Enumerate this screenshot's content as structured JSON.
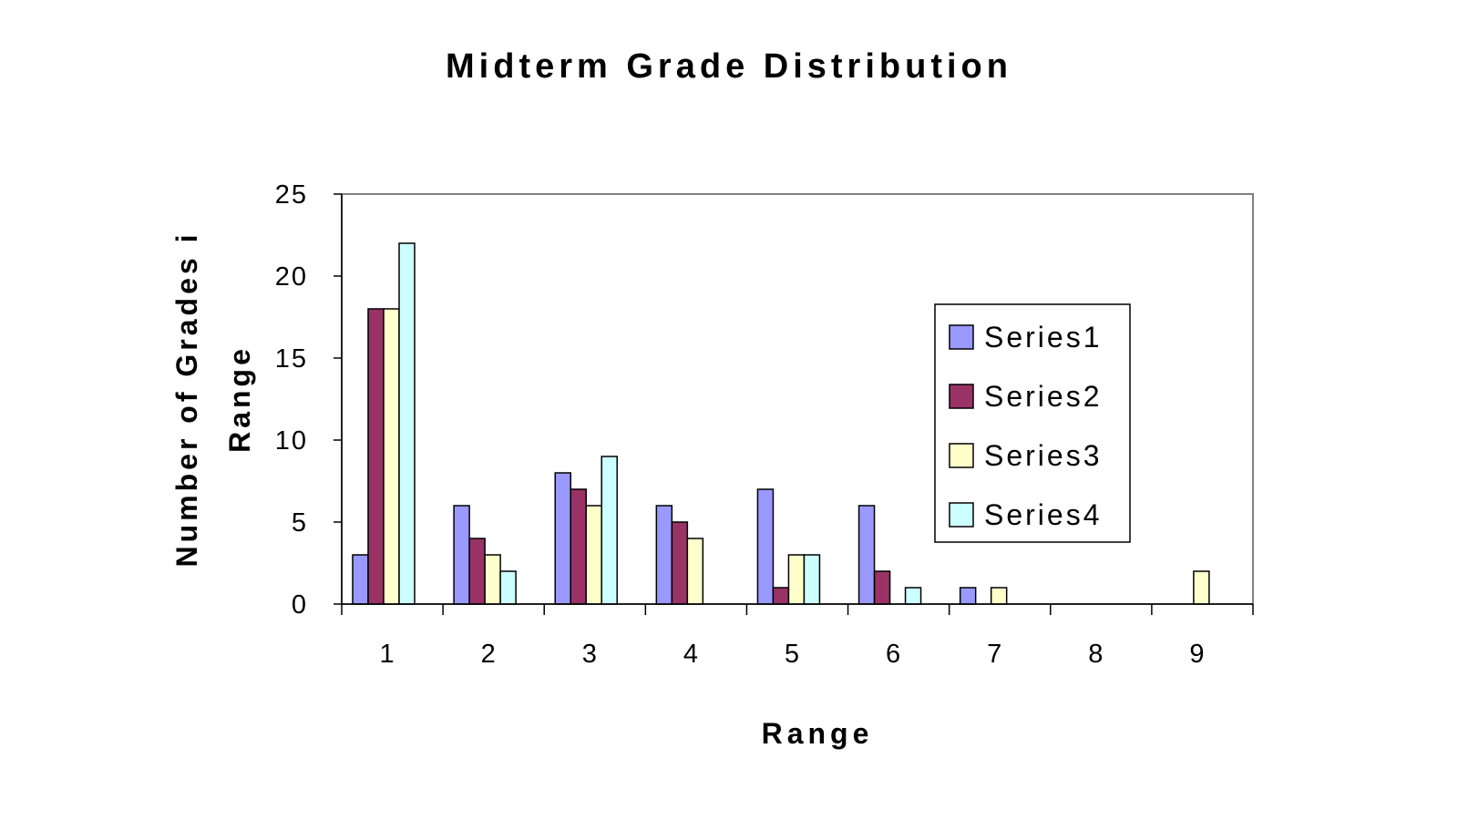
{
  "chart_data": {
    "type": "bar",
    "title": "Midterm Grade Distribution",
    "xlabel": "Range",
    "ylabel": "Number of Grades i Range",
    "categories": [
      "1",
      "2",
      "3",
      "4",
      "5",
      "6",
      "7",
      "8",
      "9"
    ],
    "ylim": [
      0,
      25
    ],
    "yticks": [
      0,
      5,
      10,
      15,
      20,
      25
    ],
    "grid": false,
    "legend_position": "right",
    "series": [
      {
        "name": "Series1",
        "color": "#9999ff",
        "values": [
          3,
          6,
          8,
          6,
          7,
          6,
          1,
          0,
          0
        ]
      },
      {
        "name": "Series2",
        "color": "#993366",
        "values": [
          18,
          4,
          7,
          5,
          1,
          2,
          0,
          0,
          0
        ]
      },
      {
        "name": "Series3",
        "color": "#ffffcc",
        "values": [
          18,
          3,
          6,
          4,
          3,
          0,
          1,
          0,
          2
        ]
      },
      {
        "name": "Series4",
        "color": "#ccffff",
        "values": [
          22,
          2,
          9,
          0,
          3,
          1,
          0,
          0,
          0
        ]
      }
    ]
  }
}
